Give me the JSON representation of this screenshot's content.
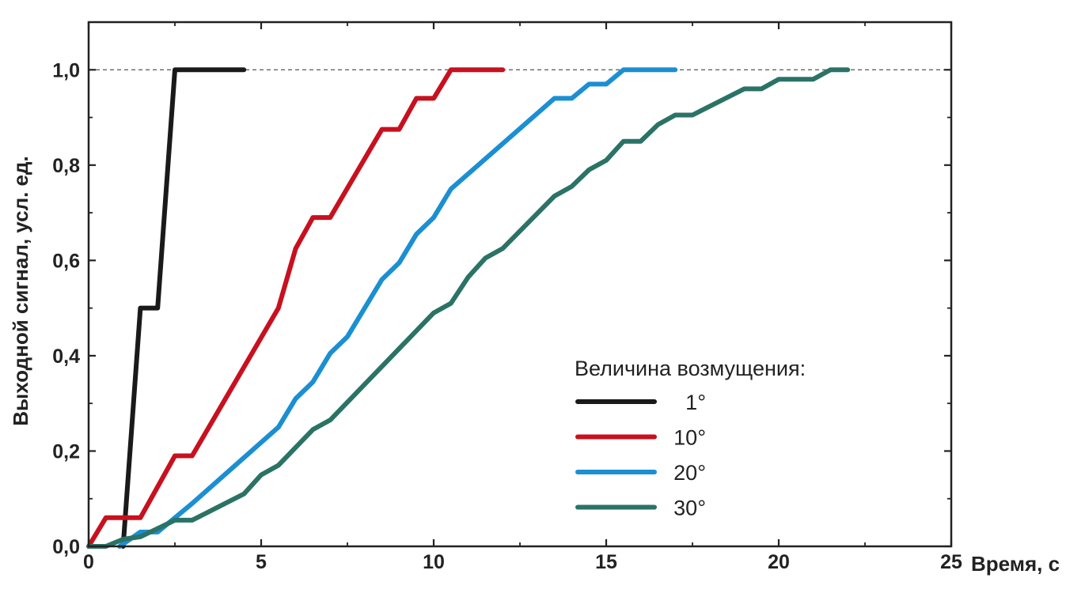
{
  "chart_data": {
    "type": "line",
    "title": "",
    "xlabel": "Время, с",
    "ylabel": "Выходной сигнал, усл. ед.",
    "xlim": [
      0,
      25
    ],
    "ylim": [
      0,
      1.1
    ],
    "x_ticks": [
      0,
      5,
      10,
      15,
      20,
      25
    ],
    "x_tick_labels": [
      "0",
      "5",
      "10",
      "15",
      "20",
      "25"
    ],
    "y_ticks": [
      0,
      0.2,
      0.4,
      0.6,
      0.8,
      1.0
    ],
    "y_tick_labels": [
      "0,0",
      "0,2",
      "0,4",
      "0,6",
      "0,8",
      "1,0"
    ],
    "reference_line": {
      "y": 1.0,
      "style": "dashed"
    },
    "grid": false,
    "legend": {
      "title": "Величина возмущения:",
      "placement": "right"
    },
    "series": [
      {
        "name": "1°",
        "color": "#1a1a1a",
        "points": [
          [
            1.0,
            0.0
          ],
          [
            1.5,
            0.5
          ],
          [
            2.0,
            0.5
          ],
          [
            2.5,
            1.0
          ],
          [
            4.5,
            1.0
          ]
        ]
      },
      {
        "name": "10°",
        "color": "#c8101e",
        "points": [
          [
            0,
            0.0
          ],
          [
            0.5,
            0.06
          ],
          [
            1.5,
            0.06
          ],
          [
            2.5,
            0.19
          ],
          [
            3.0,
            0.19
          ],
          [
            5.5,
            0.5
          ],
          [
            6.0,
            0.625
          ],
          [
            6.5,
            0.69
          ],
          [
            7.0,
            0.69
          ],
          [
            8.5,
            0.875
          ],
          [
            9.0,
            0.875
          ],
          [
            9.5,
            0.94
          ],
          [
            10.0,
            0.94
          ],
          [
            10.5,
            1.0
          ],
          [
            12.0,
            1.0
          ]
        ]
      },
      {
        "name": "20°",
        "color": "#1b8fd2",
        "points": [
          [
            0.9,
            0.0
          ],
          [
            1.5,
            0.03
          ],
          [
            2.0,
            0.03
          ],
          [
            3.0,
            0.09
          ],
          [
            5.5,
            0.25
          ],
          [
            6.0,
            0.31
          ],
          [
            6.5,
            0.345
          ],
          [
            7.0,
            0.405
          ],
          [
            7.5,
            0.44
          ],
          [
            8.5,
            0.56
          ],
          [
            9.0,
            0.595
          ],
          [
            9.5,
            0.655
          ],
          [
            10.0,
            0.69
          ],
          [
            10.5,
            0.75
          ],
          [
            13.5,
            0.94
          ],
          [
            14.0,
            0.94
          ],
          [
            14.5,
            0.97
          ],
          [
            15.0,
            0.97
          ],
          [
            15.5,
            1.0
          ],
          [
            17.0,
            1.0
          ]
        ]
      },
      {
        "name": "30°",
        "color": "#2a7366",
        "points": [
          [
            0,
            0.0
          ],
          [
            0.5,
            0.0
          ],
          [
            1.0,
            0.015
          ],
          [
            1.5,
            0.02
          ],
          [
            2.5,
            0.055
          ],
          [
            3.0,
            0.055
          ],
          [
            4.5,
            0.11
          ],
          [
            5.0,
            0.15
          ],
          [
            5.5,
            0.17
          ],
          [
            6.5,
            0.245
          ],
          [
            7.0,
            0.265
          ],
          [
            8.0,
            0.34
          ],
          [
            10.0,
            0.49
          ],
          [
            10.5,
            0.51
          ],
          [
            11.0,
            0.565
          ],
          [
            11.5,
            0.605
          ],
          [
            12.0,
            0.625
          ],
          [
            13.5,
            0.735
          ],
          [
            14.0,
            0.755
          ],
          [
            14.5,
            0.79
          ],
          [
            15.0,
            0.81
          ],
          [
            15.5,
            0.85
          ],
          [
            16.0,
            0.85
          ],
          [
            16.5,
            0.885
          ],
          [
            17.0,
            0.905
          ],
          [
            17.5,
            0.905
          ],
          [
            19.0,
            0.96
          ],
          [
            19.5,
            0.96
          ],
          [
            20.0,
            0.98
          ],
          [
            21.0,
            0.98
          ],
          [
            21.5,
            1.0
          ],
          [
            22.0,
            1.0
          ]
        ]
      }
    ]
  }
}
